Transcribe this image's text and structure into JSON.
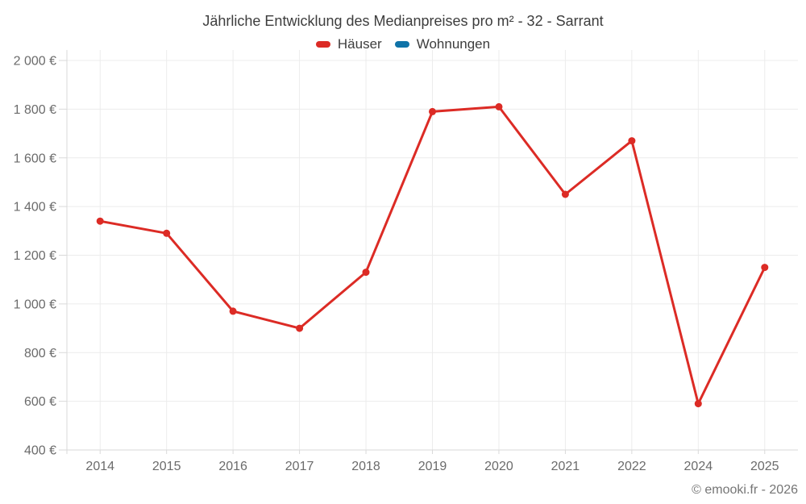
{
  "title": "Jährliche Entwicklung des Medianpreises pro m² - 32 - Sarrant",
  "footer": {
    "text": "© emooki.fr - 2026"
  },
  "colors": {
    "haeuser": "#dc2b25",
    "wohnungen": "#0f73a8",
    "grid": "#ececec",
    "axis": "#d9d9d9",
    "tick_text": "#6b6b6b",
    "title_text": "#3d3d3d"
  },
  "chart_data": {
    "type": "line",
    "title": "Jährliche Entwicklung des Medianpreises pro m² - 32 - Sarrant",
    "categories": [
      "2014",
      "2015",
      "2016",
      "2017",
      "2018",
      "2019",
      "2020",
      "2021",
      "2022",
      "2024",
      "2025"
    ],
    "series": [
      {
        "name": "Häuser",
        "color": "#dc2b25",
        "values": [
          1340,
          1290,
          970,
          900,
          1130,
          1790,
          1810,
          1450,
          1670,
          590,
          1150
        ]
      },
      {
        "name": "Wohnungen",
        "color": "#0f73a8",
        "values": [
          null,
          null,
          null,
          null,
          null,
          null,
          null,
          null,
          null,
          null,
          null
        ]
      }
    ],
    "xlabel": "",
    "ylabel": "",
    "ylim": [
      400,
      2000
    ],
    "y_ticks": [
      {
        "value": 400,
        "label": "400 €"
      },
      {
        "value": 600,
        "label": "600 €"
      },
      {
        "value": 800,
        "label": "800 €"
      },
      {
        "value": 1000,
        "label": "1 000 €"
      },
      {
        "value": 1200,
        "label": "1 200 €"
      },
      {
        "value": 1400,
        "label": "1 400 €"
      },
      {
        "value": 1600,
        "label": "1 600 €"
      },
      {
        "value": 1800,
        "label": "1 800 €"
      },
      {
        "value": 2000,
        "label": "2 000 €"
      }
    ],
    "grid": true,
    "legend_position": "top"
  }
}
